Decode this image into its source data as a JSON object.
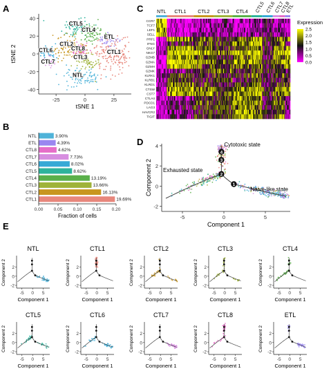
{
  "panel_letters": {
    "a": "A",
    "b": "B",
    "c": "C",
    "d": "D",
    "e": "E"
  },
  "colors": {
    "NTL": "#4fb3d9",
    "CTL1": "#e8877c",
    "CTL2": "#c8961f",
    "CTL3": "#9fb33a",
    "CTL4": "#5ab04a",
    "CTL5": "#2db39c",
    "CTL6": "#36a9d6",
    "CTL7": "#d78ee0",
    "CTL8": "#e66ec8",
    "ETL": "#9a87f0",
    "trajectory": "#444444",
    "heat_low": "#ff00ff",
    "heat_mid": "#111111",
    "heat_high": "#ffff00"
  },
  "chart_data": [
    {
      "type": "scatter",
      "panel": "A",
      "xlabel": "tSNE 1",
      "ylabel": "tSNE 2",
      "xlim": [
        -40,
        40
      ],
      "ylim": [
        -45,
        45
      ],
      "xticks": [
        "-25",
        "0",
        "25"
      ],
      "yticks": [
        "40",
        "20",
        "0",
        "-20",
        "-40"
      ],
      "clusters": [
        {
          "name": "CTL5",
          "cx": -7,
          "cy": 30,
          "sx": 7,
          "sy": 5,
          "n": 70
        },
        {
          "name": "CTL4",
          "cx": 5,
          "cy": 23,
          "sx": 6,
          "sy": 6,
          "n": 70
        },
        {
          "name": "ETL",
          "cx": 22,
          "cy": 15,
          "sx": 5,
          "sy": 4,
          "n": 40
        },
        {
          "name": "CTL2",
          "cx": -15,
          "cy": 7,
          "sx": 8,
          "sy": 7,
          "n": 90
        },
        {
          "name": "CTL8",
          "cx": -2,
          "cy": 3,
          "sx": 4,
          "sy": 4,
          "n": 40
        },
        {
          "name": "CTL6",
          "cx": -32,
          "cy": 1,
          "sx": 4,
          "sy": 5,
          "n": 40
        },
        {
          "name": "CTL7",
          "cx": -30,
          "cy": -10,
          "sx": 3,
          "sy": 3,
          "n": 25
        },
        {
          "name": "CTL3",
          "cx": 0,
          "cy": -8,
          "sx": 6,
          "sy": 6,
          "n": 70
        },
        {
          "name": "CTL1",
          "cx": 25,
          "cy": -2,
          "sx": 9,
          "sy": 10,
          "n": 160
        },
        {
          "name": "NTL",
          "cx": -3,
          "cy": -26,
          "sx": 8,
          "sy": 5,
          "n": 80
        }
      ],
      "labels": [
        {
          "name": "CTL5",
          "x": -8,
          "y": 32
        },
        {
          "name": "CTL4",
          "x": 3,
          "y": 25
        },
        {
          "name": "ETL",
          "x": 21,
          "y": 17
        },
        {
          "name": "CTL2",
          "x": -16,
          "y": 9
        },
        {
          "name": "CTL8",
          "x": -6,
          "y": 4
        },
        {
          "name": "CTL6",
          "x": -34,
          "y": 2
        },
        {
          "name": "CTL7",
          "x": -32,
          "y": -11
        },
        {
          "name": "CTL3",
          "x": -4,
          "y": -6
        },
        {
          "name": "CTL1",
          "x": 25,
          "y": 0
        },
        {
          "name": "NTL",
          "x": -6,
          "y": -26
        }
      ]
    },
    {
      "type": "bar",
      "panel": "B",
      "orientation": "horizontal",
      "categories": [
        "NTL",
        "ETL",
        "CTL8",
        "CTL7",
        "CTL6",
        "CTL5",
        "CTL4",
        "CTL3",
        "CTL2",
        "CTL1"
      ],
      "values": [
        3.9,
        4.39,
        4.62,
        7.73,
        8.02,
        8.62,
        13.19,
        13.66,
        16.13,
        19.69
      ],
      "value_labels": [
        "3.90%",
        "4.39%",
        "4.62%",
        "7.73%",
        "8.02%",
        "8.62%",
        "13.19%",
        "13.66%",
        "16.13%",
        "19.69%"
      ],
      "xlabel": "Fraction of cells",
      "xlim": [
        0,
        0.2
      ],
      "xticks": [
        "0.00",
        "0.05",
        "0.10",
        "0.15",
        "0.20"
      ]
    },
    {
      "type": "heatmap",
      "panel": "C",
      "groups": [
        "NTL",
        "CTL1",
        "CTL2",
        "CTL3",
        "CTL4",
        "CTL5",
        "CTL6",
        "CTL7",
        "CTL8",
        "ETL"
      ],
      "genes": [
        "CCR7",
        "TCF7",
        "LEF1",
        "SELL",
        "PRF1",
        "IFNG",
        "GNLY",
        "NKG7",
        "GZMB",
        "GZMA",
        "GZMH",
        "GZMK",
        "KLRK1",
        "KLRB1",
        "KLRD1",
        "CTSW",
        "CST7",
        "CTLA4",
        "PDCD1",
        "LAG3",
        "HAVCR2",
        "TIGIT"
      ],
      "legend_title": "Expression",
      "scale_ticks": [
        "2.5",
        "2.0",
        "1.5",
        "1.0",
        "0.5",
        "0.0"
      ],
      "range": [
        0,
        2.5
      ],
      "profile": {
        "NTL": [
          2.3,
          2.2,
          2.0,
          2.1,
          0.2,
          0.2,
          0.3,
          0.3,
          0.2,
          0.3,
          0.2,
          0.4,
          0.5,
          0.6,
          0.4,
          0.4,
          0.3,
          0.2,
          0.2,
          0.2,
          0.2,
          0.3
        ],
        "CTL1": [
          0.2,
          0.2,
          0.2,
          0.3,
          1.9,
          1.0,
          2.1,
          2.3,
          2.0,
          2.2,
          2.1,
          0.9,
          1.5,
          1.2,
          1.7,
          2.0,
          2.1,
          0.6,
          0.7,
          0.8,
          0.6,
          0.7
        ],
        "CTL2": [
          0.4,
          0.5,
          0.4,
          0.5,
          1.5,
          1.5,
          1.6,
          2.0,
          1.4,
          1.9,
          1.5,
          1.4,
          1.3,
          1.2,
          1.3,
          1.8,
          1.8,
          1.2,
          1.4,
          1.3,
          1.2,
          1.3
        ],
        "CTL3": [
          0.6,
          0.7,
          0.6,
          0.6,
          1.2,
          1.3,
          1.2,
          1.7,
          1.1,
          1.6,
          1.2,
          1.6,
          1.2,
          1.3,
          1.1,
          1.6,
          1.5,
          1.3,
          1.4,
          1.4,
          1.3,
          1.4
        ],
        "CTL4": [
          0.3,
          0.3,
          0.3,
          0.4,
          1.7,
          1.8,
          1.5,
          2.1,
          1.6,
          2.0,
          1.6,
          1.1,
          1.4,
          1.0,
          1.4,
          2.0,
          2.0,
          1.9,
          2.0,
          1.9,
          2.0,
          2.0
        ],
        "CTL5": [
          0.5,
          0.6,
          0.5,
          0.7,
          2.0,
          2.2,
          1.8,
          2.3,
          1.9,
          2.2,
          1.8,
          1.5,
          1.6,
          1.3,
          1.6,
          2.1,
          2.2,
          1.7,
          1.8,
          1.7,
          1.8,
          1.8
        ],
        "CTL6": [
          0.9,
          1.0,
          0.8,
          1.0,
          1.0,
          1.0,
          0.9,
          1.3,
          0.8,
          1.2,
          0.9,
          1.3,
          1.0,
          1.1,
          0.9,
          1.2,
          1.1,
          1.0,
          1.1,
          1.0,
          1.0,
          1.0
        ],
        "CTL7": [
          0.4,
          0.4,
          0.4,
          0.5,
          1.6,
          1.2,
          1.7,
          2.0,
          1.6,
          1.8,
          1.6,
          1.0,
          1.4,
          1.1,
          1.4,
          1.8,
          1.8,
          1.4,
          1.5,
          1.4,
          1.4,
          1.5
        ],
        "CTL8": [
          0.5,
          0.5,
          0.5,
          0.6,
          1.7,
          1.9,
          1.6,
          2.1,
          1.7,
          2.0,
          1.6,
          1.2,
          1.5,
          1.2,
          1.5,
          1.9,
          1.9,
          1.6,
          1.7,
          1.6,
          1.7,
          1.7
        ],
        "ETL": [
          0.2,
          0.3,
          0.2,
          0.3,
          1.8,
          0.8,
          1.9,
          2.2,
          1.9,
          2.1,
          1.9,
          0.7,
          1.4,
          1.1,
          1.6,
          1.9,
          2.0,
          0.5,
          0.6,
          0.6,
          0.5,
          0.6
        ]
      }
    },
    {
      "type": "scatter",
      "panel": "D",
      "xlabel": "Component 1",
      "ylabel": "Component 2",
      "xlim": [
        -7.5,
        8
      ],
      "ylim": [
        -2.5,
        4.2
      ],
      "xticks": [
        "-5",
        "0",
        "5"
      ],
      "yticks": [
        "4",
        "2",
        "0",
        "-2"
      ],
      "state_labels": [
        "Cytotoxic state",
        "Exhausted state",
        "Naive-like state"
      ],
      "branch_points": [
        "1",
        "2",
        "3",
        "4"
      ],
      "branch_point_coords": [
        [
          1.2,
          0.2
        ],
        [
          -0.3,
          1.2
        ],
        [
          -0.3,
          2.6
        ],
        [
          -0.3,
          3.4
        ]
      ]
    },
    {
      "type": "scatter",
      "panel": "E",
      "xlabel": "Component 1",
      "ylabel": "Component 2",
      "xticks": [
        "-5",
        "0",
        "5"
      ],
      "yticks": [
        "2",
        "0",
        "-2"
      ],
      "subplots": [
        "NTL",
        "CTL1",
        "CTL2",
        "CTL3",
        "CTL4",
        "CTL5",
        "CTL6",
        "CTL7",
        "CTL8",
        "ETL"
      ]
    }
  ]
}
